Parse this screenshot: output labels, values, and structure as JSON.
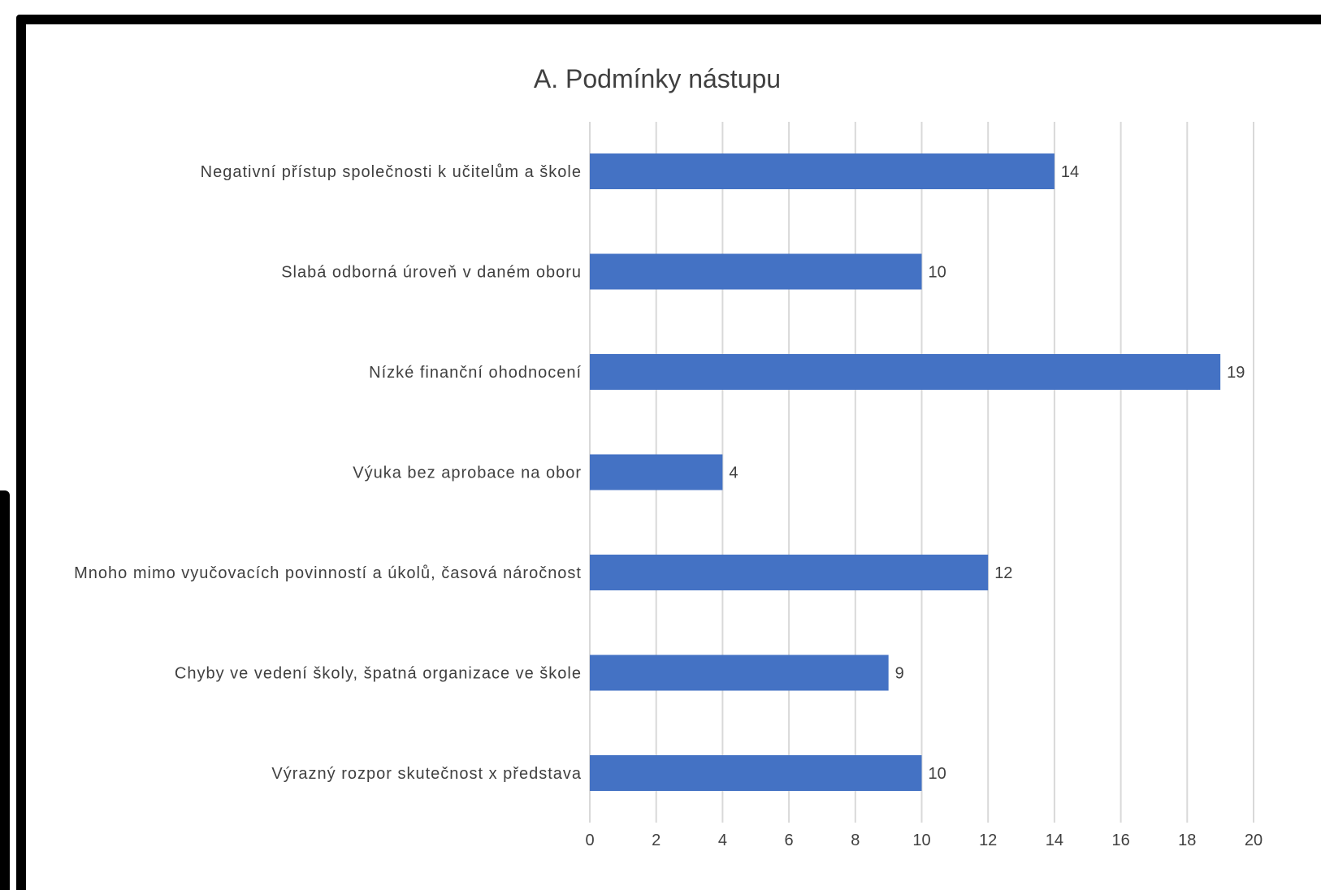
{
  "chart_data": {
    "type": "bar",
    "orientation": "horizontal",
    "title": "A. Podmínky nástupu",
    "categories": [
      "Negativní přístup společnosti k učitelům a škole",
      "Slabá odborná úroveň v daném oboru",
      "Nízké finanční ohodnocení",
      "Výuka bez aprobace na obor",
      "Mnoho mimo vyučovacích povinností a úkolů, časová náročnost",
      "Chyby ve vedení školy, špatná organizace ve škole",
      "Výrazný rozpor skutečnost x představa"
    ],
    "values": [
      14,
      10,
      19,
      4,
      12,
      9,
      10
    ],
    "data_labels": [
      "14",
      "10",
      "19",
      "4",
      "12",
      "9",
      "10"
    ],
    "xlim": [
      0,
      20
    ],
    "x_ticks": [
      "0",
      "2",
      "4",
      "6",
      "8",
      "10",
      "12",
      "14",
      "16",
      "18",
      "20"
    ],
    "grid": true,
    "legend": "none",
    "colors": {
      "bar": "#4472C4",
      "grid": "#D9D9D9",
      "text": "#404040",
      "frame": "#000000"
    }
  }
}
